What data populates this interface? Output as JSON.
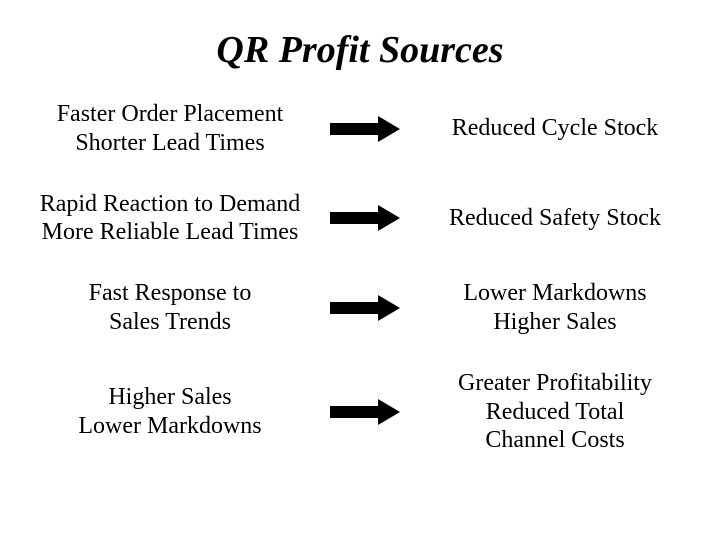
{
  "title": "QR Profit Sources",
  "title_fontsize": 38,
  "title_font_style": "italic bold",
  "body_fontsize": 24,
  "font_family": "Times New Roman",
  "text_color": "#000000",
  "background_color": "#ffffff",
  "arrow": {
    "shaft_width": 48,
    "shaft_height": 12,
    "head_width": 22,
    "head_height": 26,
    "color": "#000000"
  },
  "rows": [
    {
      "left_line1": "Faster Order Placement",
      "left_line2": "Shorter Lead Times",
      "right_line1": "Reduced Cycle Stock",
      "right_line2": "",
      "right_line3": ""
    },
    {
      "left_line1": "Rapid Reaction to Demand",
      "left_line2": "More Reliable Lead Times",
      "right_line1": "Reduced Safety Stock",
      "right_line2": "",
      "right_line3": ""
    },
    {
      "left_line1": "Fast Response to",
      "left_line2": "Sales Trends",
      "right_line1": "Lower Markdowns",
      "right_line2": "Higher Sales",
      "right_line3": ""
    },
    {
      "left_line1": "Higher Sales",
      "left_line2": "Lower Markdowns",
      "right_line1": "Greater Profitability",
      "right_line2": "Reduced Total",
      "right_line3": "Channel Costs"
    }
  ]
}
